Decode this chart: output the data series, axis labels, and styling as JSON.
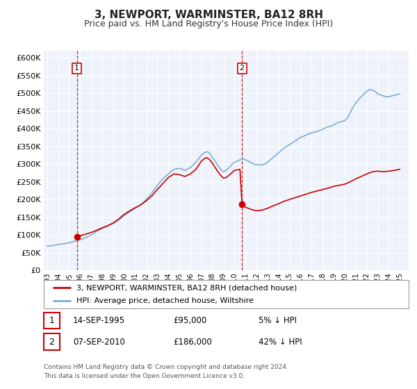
{
  "title": "3, NEWPORT, WARMINSTER, BA12 8RH",
  "subtitle": "Price paid vs. HM Land Registry's House Price Index (HPI)",
  "title_fontsize": 11,
  "subtitle_fontsize": 9,
  "background_color": "#ffffff",
  "plot_bg_color": "#eef2fb",
  "grid_color": "#ffffff",
  "red_color": "#cc0000",
  "blue_color": "#7dadd4",
  "sale1_year": 1995.71,
  "sale1_price": 95000,
  "sale1_label": "1",
  "sale1_date": "14-SEP-1995",
  "sale1_hpi_diff": "5% ↓ HPI",
  "sale2_year": 2010.68,
  "sale2_price": 186000,
  "sale2_label": "2",
  "sale2_date": "07-SEP-2010",
  "sale2_hpi_diff": "42% ↓ HPI",
  "ylim_max": 620000,
  "ytick_vals": [
    0,
    50000,
    100000,
    150000,
    200000,
    250000,
    300000,
    350000,
    400000,
    450000,
    500000,
    550000,
    600000
  ],
  "ytick_labels": [
    "£0",
    "£50K",
    "£100K",
    "£150K",
    "£200K",
    "£250K",
    "£300K",
    "£350K",
    "£400K",
    "£450K",
    "£500K",
    "£550K",
    "£600K"
  ],
  "xlim_start": 1992.7,
  "xlim_end": 2025.8,
  "xtick_years": [
    1993,
    1994,
    1995,
    1996,
    1997,
    1998,
    1999,
    2000,
    2001,
    2002,
    2003,
    2004,
    2005,
    2006,
    2007,
    2008,
    2009,
    2010,
    2011,
    2012,
    2013,
    2014,
    2015,
    2016,
    2017,
    2018,
    2019,
    2020,
    2021,
    2022,
    2023,
    2024,
    2025
  ],
  "legend_label_red": "3, NEWPORT, WARMINSTER, BA12 8RH (detached house)",
  "legend_label_blue": "HPI: Average price, detached house, Wiltshire",
  "footer_line1": "Contains HM Land Registry data © Crown copyright and database right 2024.",
  "footer_line2": "This data is licensed under the Open Government Licence v3.0.",
  "hpi_years": [
    1993.0,
    1993.5,
    1994.0,
    1994.5,
    1995.0,
    1995.5,
    1996.0,
    1996.5,
    1997.0,
    1997.5,
    1998.0,
    1998.5,
    1999.0,
    1999.5,
    2000.0,
    2000.5,
    2001.0,
    2001.5,
    2002.0,
    2002.5,
    2003.0,
    2003.5,
    2004.0,
    2004.5,
    2005.0,
    2005.5,
    2006.0,
    2006.5,
    2007.0,
    2007.25,
    2007.5,
    2007.75,
    2008.0,
    2008.25,
    2008.5,
    2008.75,
    2009.0,
    2009.25,
    2009.5,
    2009.75,
    2010.0,
    2010.25,
    2010.5,
    2010.75,
    2011.0,
    2011.25,
    2011.5,
    2011.75,
    2012.0,
    2012.25,
    2012.5,
    2012.75,
    2013.0,
    2013.25,
    2013.5,
    2013.75,
    2014.0,
    2014.25,
    2014.5,
    2014.75,
    2015.0,
    2015.25,
    2015.5,
    2015.75,
    2016.0,
    2016.25,
    2016.5,
    2016.75,
    2017.0,
    2017.25,
    2017.5,
    2017.75,
    2018.0,
    2018.25,
    2018.5,
    2018.75,
    2019.0,
    2019.25,
    2019.5,
    2019.75,
    2020.0,
    2020.25,
    2020.5,
    2020.75,
    2021.0,
    2021.25,
    2021.5,
    2021.75,
    2022.0,
    2022.25,
    2022.5,
    2022.75,
    2023.0,
    2023.25,
    2023.5,
    2023.75,
    2024.0,
    2024.25,
    2024.5,
    2024.75,
    2025.0
  ],
  "hpi_prices": [
    68000,
    70000,
    73000,
    75000,
    78000,
    82000,
    86000,
    92000,
    100000,
    110000,
    118000,
    125000,
    132000,
    142000,
    155000,
    165000,
    175000,
    185000,
    200000,
    218000,
    240000,
    258000,
    272000,
    285000,
    288000,
    282000,
    290000,
    305000,
    325000,
    332000,
    335000,
    330000,
    318000,
    308000,
    295000,
    285000,
    278000,
    282000,
    290000,
    298000,
    305000,
    308000,
    312000,
    315000,
    312000,
    308000,
    304000,
    300000,
    298000,
    297000,
    298000,
    300000,
    305000,
    312000,
    318000,
    325000,
    332000,
    338000,
    345000,
    350000,
    355000,
    360000,
    365000,
    370000,
    375000,
    378000,
    382000,
    385000,
    388000,
    390000,
    392000,
    395000,
    398000,
    402000,
    405000,
    407000,
    410000,
    415000,
    418000,
    420000,
    422000,
    430000,
    445000,
    460000,
    472000,
    482000,
    490000,
    498000,
    505000,
    510000,
    508000,
    505000,
    498000,
    495000,
    492000,
    490000,
    490000,
    492000,
    494000,
    496000,
    498000
  ],
  "red_years": [
    1995.71,
    1996.0,
    1996.5,
    1997.0,
    1997.5,
    1998.0,
    1998.5,
    1999.0,
    1999.5,
    2000.0,
    2000.5,
    2001.0,
    2001.5,
    2002.0,
    2002.5,
    2003.0,
    2003.5,
    2004.0,
    2004.5,
    2005.0,
    2005.5,
    2006.0,
    2006.5,
    2007.0,
    2007.25,
    2007.5,
    2007.75,
    2008.0,
    2008.25,
    2008.5,
    2008.75,
    2009.0,
    2009.25,
    2009.5,
    2009.75,
    2010.0,
    2010.5,
    2010.68,
    2011.0,
    2011.5,
    2012.0,
    2012.5,
    2013.0,
    2013.5,
    2014.0,
    2014.5,
    2015.0,
    2015.5,
    2016.0,
    2016.5,
    2017.0,
    2017.5,
    2018.0,
    2018.5,
    2019.0,
    2019.5,
    2020.0,
    2020.5,
    2021.0,
    2021.5,
    2022.0,
    2022.5,
    2023.0,
    2023.5,
    2024.0,
    2024.5,
    2025.0
  ],
  "red_prices": [
    95000,
    98000,
    102000,
    107000,
    113000,
    120000,
    126000,
    134000,
    145000,
    158000,
    168000,
    177000,
    185000,
    196000,
    210000,
    228000,
    245000,
    262000,
    272000,
    270000,
    265000,
    272000,
    285000,
    308000,
    315000,
    318000,
    312000,
    302000,
    290000,
    278000,
    268000,
    260000,
    262000,
    268000,
    275000,
    282000,
    285000,
    186000,
    178000,
    172000,
    168000,
    170000,
    175000,
    182000,
    188000,
    195000,
    200000,
    205000,
    210000,
    215000,
    220000,
    224000,
    228000,
    232000,
    237000,
    240000,
    243000,
    250000,
    258000,
    265000,
    272000,
    278000,
    280000,
    278000,
    280000,
    282000,
    285000
  ]
}
